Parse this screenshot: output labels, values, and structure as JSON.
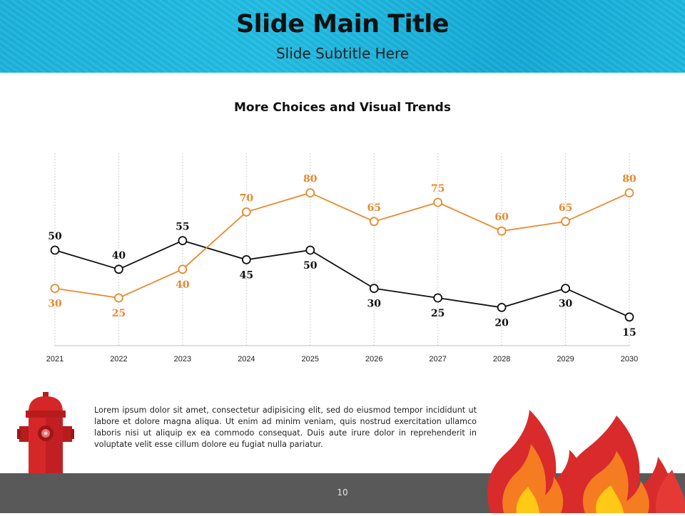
{
  "header": {
    "title": "Slide Main Title",
    "subtitle": "Slide Subtitle Here"
  },
  "body_text": "Lorem ipsum dolor sit amet, consectetur adipisicing elit, sed do eiusmod tempor incididunt ut labore et dolore magna aliqua. Ut enim ad minim veniam, quis nostrud exercitation ullamco laboris nisi ut aliquip ex ea commodo consequat. Duis aute irure dolor in reprehenderit in voluptate velit esse cillum dolore eu fugiat nulla pariatur.",
  "footer": {
    "page_number": "10"
  },
  "colors": {
    "header": "#1db2dc",
    "series_orange": "#e8892e",
    "series_black": "#111111",
    "footer": "#595959"
  },
  "icons": [
    "fire-hydrant-icon",
    "flames-icon"
  ],
  "chart_data": {
    "type": "line",
    "title": "More Choices and Visual Trends",
    "categories": [
      "2021",
      "2022",
      "2023",
      "2024",
      "2025",
      "2026",
      "2027",
      "2028",
      "2029",
      "2030"
    ],
    "series": [
      {
        "values": [
          50,
          40,
          55,
          45,
          50,
          30,
          25,
          20,
          30,
          15
        ],
        "color": "#111111"
      },
      {
        "values": [
          30,
          25,
          40,
          70,
          80,
          65,
          75,
          60,
          65,
          80
        ],
        "color": "#e8892e"
      }
    ],
    "ylim": [
      0,
      100
    ],
    "grid": "vertical dashed",
    "legend": "none"
  }
}
